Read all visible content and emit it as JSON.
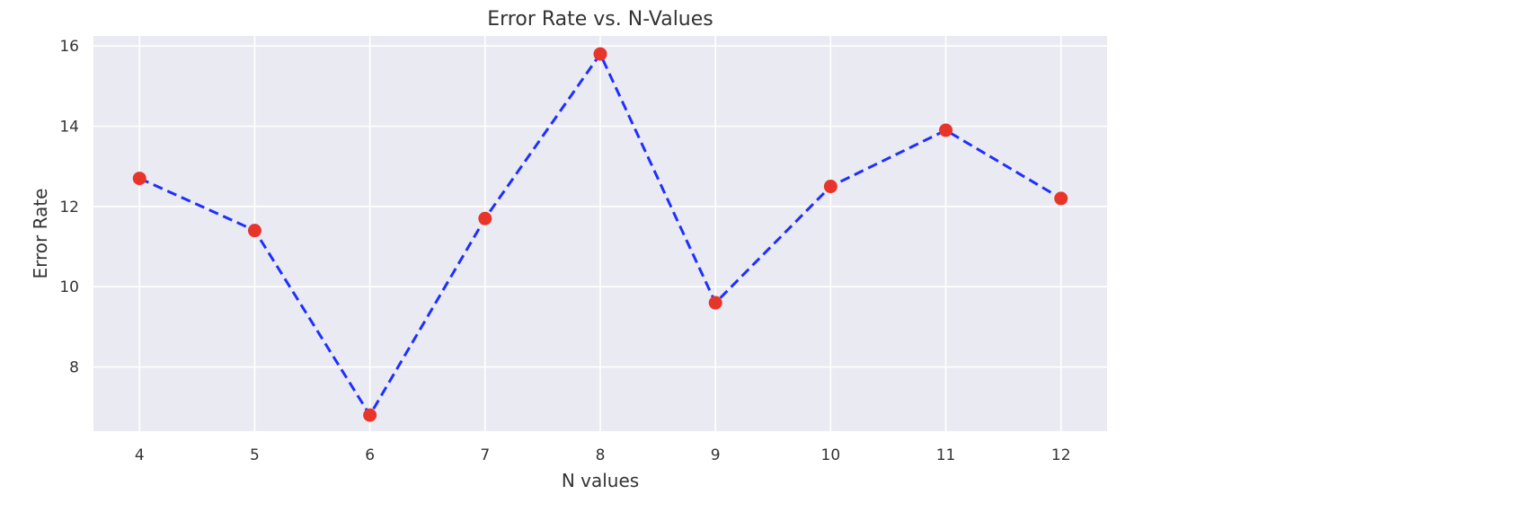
{
  "chart_data": {
    "type": "line",
    "title": "Error Rate vs. N-Values",
    "xlabel": "N values",
    "ylabel": "Error Rate",
    "x": [
      4,
      5,
      6,
      7,
      8,
      9,
      10,
      11,
      12
    ],
    "series": [
      {
        "values": [
          12.7,
          11.4,
          6.8,
          11.7,
          15.8,
          9.6,
          12.5,
          13.9,
          12.2
        ]
      }
    ],
    "xticks": [
      "4",
      "5",
      "6",
      "7",
      "8",
      "9",
      "10",
      "11",
      "12"
    ],
    "yticks": [
      "8",
      "10",
      "12",
      "14",
      "16"
    ],
    "xlim": [
      3.6,
      12.4
    ],
    "ylim": [
      6.4,
      16.25
    ],
    "grid": true,
    "line_style": "dashed",
    "colors": {
      "line": "#1f2fff",
      "marker": "#e8352b",
      "plot_background": "#eaeaf2",
      "grid": "#ffffff"
    }
  }
}
